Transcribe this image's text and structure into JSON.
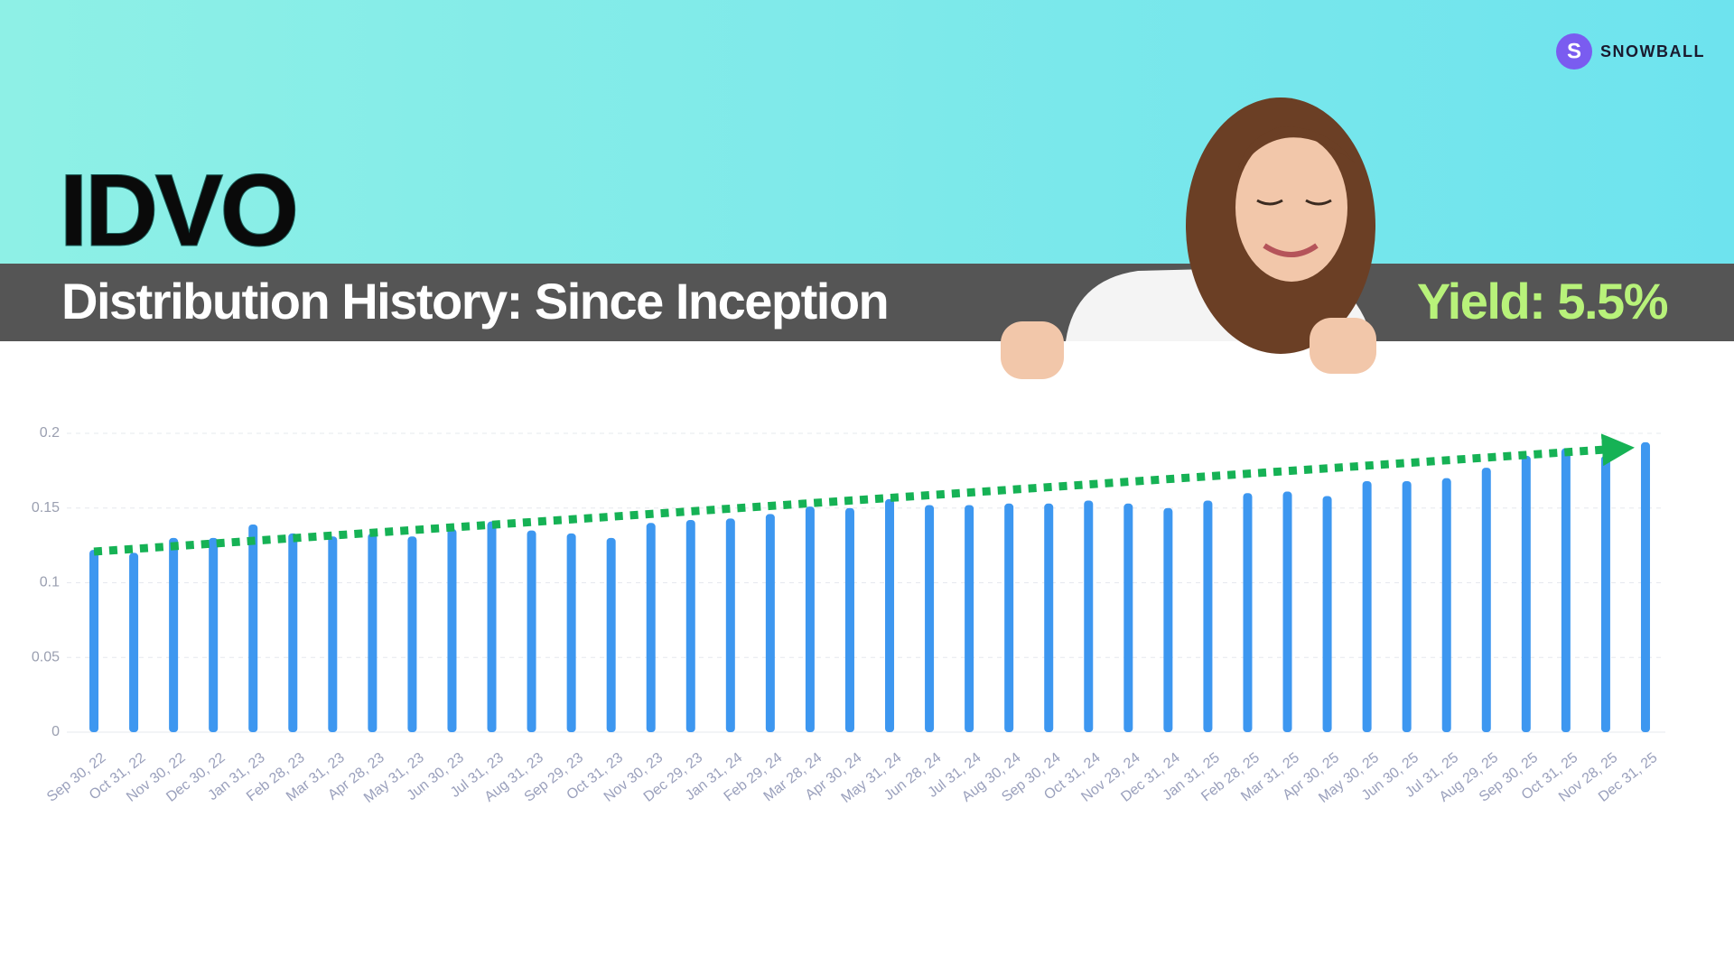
{
  "brand": "SNOWBALL",
  "brand_initial": "S",
  "chart_data": {
    "type": "bar",
    "title": "IDVO",
    "subtitle": "Distribution History: Since Inception",
    "annotation": "Yield: 5.5%",
    "categories": [
      "Sep 30, 22",
      "Oct 31, 22",
      "Nov 30, 22",
      "Dec 30, 22",
      "Jan 31, 23",
      "Feb 28, 23",
      "Mar 31, 23",
      "Apr 28, 23",
      "May 31, 23",
      "Jun 30, 23",
      "Jul 31, 23",
      "Aug 31, 23",
      "Sep 29, 23",
      "Oct 31, 23",
      "Nov 30, 23",
      "Dec 29, 23",
      "Jan 31, 24",
      "Feb 29, 24",
      "Mar 28, 24",
      "Apr 30, 24",
      "May 31, 24",
      "Jun 28, 24",
      "Jul 31, 24",
      "Aug 30, 24",
      "Sep 30, 24",
      "Oct 31, 24",
      "Nov 29, 24",
      "Dec 31, 24",
      "Jan 31, 25",
      "Feb 28, 25",
      "Mar 31, 25",
      "Apr 30, 25",
      "May 30, 25",
      "Jun 30, 25",
      "Jul 31, 25",
      "Aug 29, 25",
      "Sep 30, 25",
      "Oct 31, 25",
      "Nov 28, 25",
      "Dec 31, 25"
    ],
    "values": [
      0.122,
      0.12,
      0.13,
      0.13,
      0.139,
      0.133,
      0.131,
      0.133,
      0.131,
      0.136,
      0.141,
      0.135,
      0.133,
      0.13,
      0.14,
      0.142,
      0.143,
      0.146,
      0.151,
      0.15,
      0.156,
      0.152,
      0.152,
      0.153,
      0.153,
      0.155,
      0.153,
      0.15,
      0.155,
      0.16,
      0.161,
      0.158,
      0.168,
      0.168,
      0.17,
      0.177,
      0.185,
      0.19,
      0.185,
      0.194
    ],
    "color": "#3d97f0",
    "ylim": [
      0,
      0.2
    ],
    "yticks": [
      0,
      0.05,
      0.1,
      0.15,
      0.2
    ],
    "grid": true
  }
}
